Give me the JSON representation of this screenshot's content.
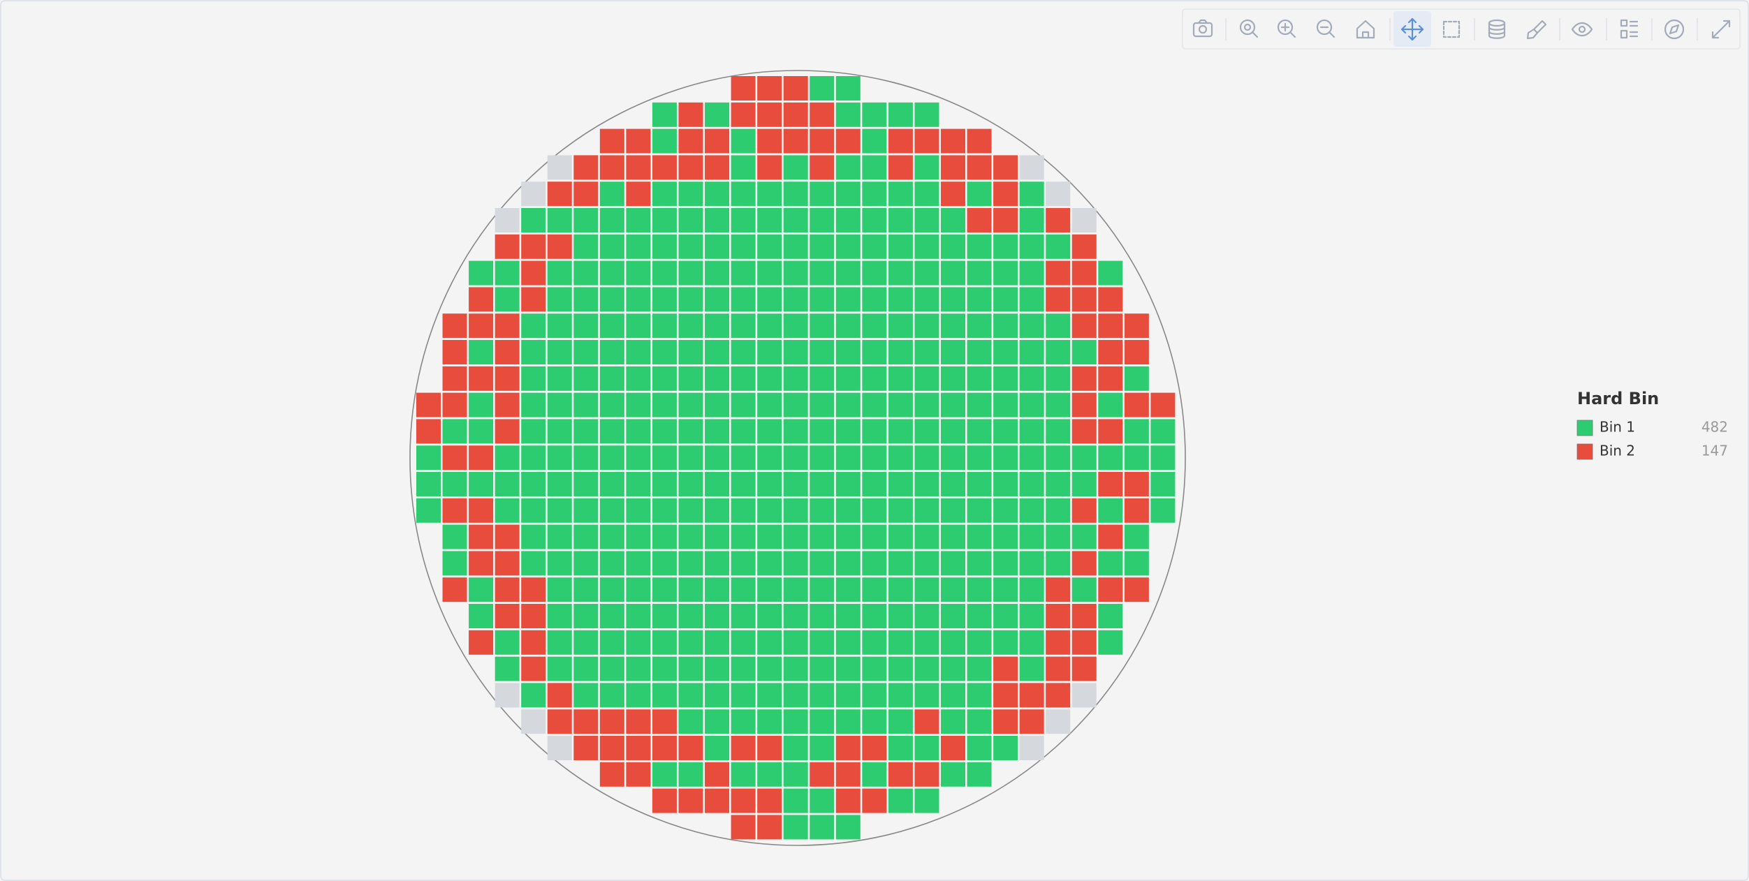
{
  "chart_data": {
    "type": "wafer_map",
    "legend_title": "Hard Bin",
    "series": [
      {
        "name": "Bin 1",
        "color": "#2ecc71",
        "count": 482
      },
      {
        "name": "Bin 2",
        "color": "#e74c3c",
        "count": 147
      }
    ],
    "edge_color": "#d5d8dc",
    "bin_map": [
      [
        null,
        null,
        null,
        null,
        null,
        null,
        null,
        null,
        null,
        null,
        null,
        null,
        2,
        2,
        2,
        1,
        1,
        null,
        null,
        null,
        null,
        null,
        null,
        null,
        null,
        null,
        null,
        null,
        null
      ],
      [
        null,
        null,
        null,
        null,
        null,
        null,
        null,
        null,
        null,
        1,
        2,
        1,
        2,
        2,
        2,
        2,
        1,
        1,
        1,
        1,
        null,
        null,
        null,
        null,
        null,
        null,
        null,
        null,
        null
      ],
      [
        null,
        null,
        null,
        null,
        null,
        null,
        null,
        2,
        2,
        1,
        2,
        2,
        1,
        2,
        2,
        2,
        2,
        1,
        2,
        2,
        2,
        2,
        null,
        null,
        null,
        null,
        null,
        null,
        null
      ],
      [
        null,
        null,
        null,
        null,
        null,
        0,
        2,
        2,
        2,
        2,
        2,
        2,
        1,
        2,
        1,
        2,
        1,
        1,
        2,
        1,
        2,
        2,
        2,
        0,
        null,
        null,
        null,
        null,
        null
      ],
      [
        null,
        null,
        null,
        null,
        0,
        2,
        2,
        1,
        2,
        1,
        1,
        1,
        1,
        1,
        1,
        1,
        1,
        1,
        1,
        1,
        2,
        1,
        2,
        1,
        0,
        null,
        null,
        null,
        null
      ],
      [
        null,
        null,
        null,
        0,
        1,
        1,
        1,
        1,
        1,
        1,
        1,
        1,
        1,
        1,
        1,
        1,
        1,
        1,
        1,
        1,
        1,
        2,
        2,
        1,
        2,
        0,
        null,
        null,
        null
      ],
      [
        null,
        null,
        null,
        2,
        2,
        2,
        1,
        1,
        1,
        1,
        1,
        1,
        1,
        1,
        1,
        1,
        1,
        1,
        1,
        1,
        1,
        1,
        1,
        1,
        1,
        2,
        null,
        null,
        null
      ],
      [
        null,
        null,
        1,
        1,
        2,
        1,
        1,
        1,
        1,
        1,
        1,
        1,
        1,
        1,
        1,
        1,
        1,
        1,
        1,
        1,
        1,
        1,
        1,
        1,
        2,
        2,
        1,
        null,
        null
      ],
      [
        null,
        null,
        2,
        1,
        2,
        1,
        1,
        1,
        1,
        1,
        1,
        1,
        1,
        1,
        1,
        1,
        1,
        1,
        1,
        1,
        1,
        1,
        1,
        1,
        2,
        2,
        2,
        null,
        null
      ],
      [
        null,
        2,
        2,
        2,
        1,
        1,
        1,
        1,
        1,
        1,
        1,
        1,
        1,
        1,
        1,
        1,
        1,
        1,
        1,
        1,
        1,
        1,
        1,
        1,
        1,
        2,
        2,
        2,
        null
      ],
      [
        null,
        2,
        1,
        2,
        1,
        1,
        1,
        1,
        1,
        1,
        1,
        1,
        1,
        1,
        1,
        1,
        1,
        1,
        1,
        1,
        1,
        1,
        1,
        1,
        1,
        1,
        2,
        2,
        null
      ],
      [
        null,
        2,
        2,
        2,
        1,
        1,
        1,
        1,
        1,
        1,
        1,
        1,
        1,
        1,
        1,
        1,
        1,
        1,
        1,
        1,
        1,
        1,
        1,
        1,
        1,
        2,
        2,
        1,
        null
      ],
      [
        2,
        2,
        1,
        2,
        1,
        1,
        1,
        1,
        1,
        1,
        1,
        1,
        1,
        1,
        1,
        1,
        1,
        1,
        1,
        1,
        1,
        1,
        1,
        1,
        1,
        2,
        1,
        2,
        2
      ],
      [
        2,
        1,
        1,
        2,
        1,
        1,
        1,
        1,
        1,
        1,
        1,
        1,
        1,
        1,
        1,
        1,
        1,
        1,
        1,
        1,
        1,
        1,
        1,
        1,
        1,
        2,
        2,
        1,
        1
      ],
      [
        1,
        2,
        2,
        1,
        1,
        1,
        1,
        1,
        1,
        1,
        1,
        1,
        1,
        1,
        1,
        1,
        1,
        1,
        1,
        1,
        1,
        1,
        1,
        1,
        1,
        1,
        1,
        1,
        1
      ],
      [
        1,
        1,
        1,
        1,
        1,
        1,
        1,
        1,
        1,
        1,
        1,
        1,
        1,
        1,
        1,
        1,
        1,
        1,
        1,
        1,
        1,
        1,
        1,
        1,
        1,
        1,
        2,
        2,
        1
      ],
      [
        1,
        2,
        2,
        1,
        1,
        1,
        1,
        1,
        1,
        1,
        1,
        1,
        1,
        1,
        1,
        1,
        1,
        1,
        1,
        1,
        1,
        1,
        1,
        1,
        1,
        2,
        1,
        2,
        1
      ],
      [
        null,
        1,
        2,
        2,
        1,
        1,
        1,
        1,
        1,
        1,
        1,
        1,
        1,
        1,
        1,
        1,
        1,
        1,
        1,
        1,
        1,
        1,
        1,
        1,
        1,
        1,
        2,
        1,
        null
      ],
      [
        null,
        1,
        2,
        2,
        1,
        1,
        1,
        1,
        1,
        1,
        1,
        1,
        1,
        1,
        1,
        1,
        1,
        1,
        1,
        1,
        1,
        1,
        1,
        1,
        1,
        2,
        1,
        1,
        null
      ],
      [
        null,
        2,
        1,
        2,
        2,
        1,
        1,
        1,
        1,
        1,
        1,
        1,
        1,
        1,
        1,
        1,
        1,
        1,
        1,
        1,
        1,
        1,
        1,
        1,
        2,
        1,
        2,
        2,
        null
      ],
      [
        null,
        null,
        1,
        2,
        2,
        1,
        1,
        1,
        1,
        1,
        1,
        1,
        1,
        1,
        1,
        1,
        1,
        1,
        1,
        1,
        1,
        1,
        1,
        1,
        2,
        2,
        1,
        null,
        null
      ],
      [
        null,
        null,
        2,
        1,
        2,
        1,
        1,
        1,
        1,
        1,
        1,
        1,
        1,
        1,
        1,
        1,
        1,
        1,
        1,
        1,
        1,
        1,
        1,
        1,
        2,
        2,
        1,
        null,
        null
      ],
      [
        null,
        null,
        null,
        1,
        2,
        1,
        1,
        1,
        1,
        1,
        1,
        1,
        1,
        1,
        1,
        1,
        1,
        1,
        1,
        1,
        1,
        1,
        2,
        1,
        2,
        2,
        null,
        null,
        null
      ],
      [
        null,
        null,
        null,
        0,
        1,
        2,
        1,
        1,
        1,
        1,
        1,
        1,
        1,
        1,
        1,
        1,
        1,
        1,
        1,
        1,
        1,
        1,
        2,
        2,
        2,
        0,
        null,
        null,
        null
      ],
      [
        null,
        null,
        null,
        null,
        0,
        2,
        2,
        2,
        2,
        2,
        1,
        1,
        1,
        1,
        1,
        1,
        1,
        1,
        1,
        2,
        1,
        1,
        2,
        2,
        0,
        null,
        null,
        null,
        null
      ],
      [
        null,
        null,
        null,
        null,
        null,
        0,
        2,
        2,
        2,
        2,
        2,
        1,
        2,
        2,
        1,
        1,
        2,
        2,
        1,
        1,
        2,
        1,
        1,
        0,
        null,
        null,
        null,
        null,
        null
      ],
      [
        null,
        null,
        null,
        null,
        null,
        null,
        null,
        2,
        2,
        1,
        1,
        2,
        1,
        1,
        1,
        2,
        2,
        1,
        2,
        2,
        1,
        1,
        null,
        null,
        null,
        null,
        null,
        null,
        null
      ],
      [
        null,
        null,
        null,
        null,
        null,
        null,
        null,
        null,
        null,
        2,
        2,
        2,
        2,
        2,
        1,
        1,
        2,
        2,
        1,
        1,
        null,
        null,
        null,
        null,
        null,
        null,
        null,
        null,
        null
      ],
      [
        null,
        null,
        null,
        null,
        null,
        null,
        null,
        null,
        null,
        null,
        null,
        null,
        2,
        2,
        1,
        1,
        1,
        null,
        null,
        null,
        null,
        null,
        null,
        null,
        null,
        null,
        null,
        null,
        null
      ]
    ]
  }
}
